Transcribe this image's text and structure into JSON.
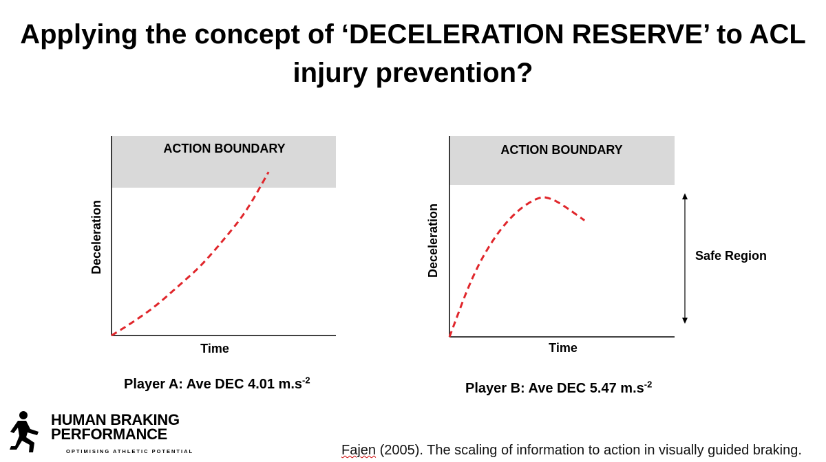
{
  "title": {
    "line1": "Applying the concept of ‘DECELERATION RESERVE’ to ACL",
    "line2": "injury prevention?"
  },
  "colors": {
    "curve": "#e0262b",
    "boundary_fill": "#d9d9d9",
    "axis": "#000000"
  },
  "chart_data": [
    {
      "type": "line",
      "style": "dashed",
      "title": "",
      "xlabel": "Time",
      "ylabel": "Deceleration",
      "boundary_label": "ACTION BOUNDARY",
      "x": [
        0,
        0.1,
        0.2,
        0.3,
        0.4,
        0.5,
        0.6,
        0.7
      ],
      "y": [
        0,
        0.07,
        0.15,
        0.25,
        0.35,
        0.48,
        0.62,
        0.82
      ],
      "xlim": [
        0,
        1
      ],
      "ylim": [
        0,
        1
      ],
      "boundary_ylim": [
        0.75,
        1
      ],
      "caption": {
        "text": "Player A: Ave DEC 4.01 m.s",
        "sup": "-2"
      }
    },
    {
      "type": "line",
      "style": "dashed",
      "title": "",
      "xlabel": "Time",
      "ylabel": "Deceleration",
      "boundary_label": "ACTION BOUNDARY",
      "x": [
        0,
        0.1,
        0.2,
        0.3,
        0.4,
        0.45,
        0.5,
        0.6
      ],
      "y": [
        0,
        0.3,
        0.5,
        0.63,
        0.7,
        0.69,
        0.66,
        0.58
      ],
      "xlim": [
        0,
        1
      ],
      "ylim": [
        0,
        1
      ],
      "boundary_ylim": [
        0.75,
        1
      ],
      "annotation": "Safe Region",
      "caption": {
        "text": "Player B: Ave DEC 5.47 m.s",
        "sup": "-2"
      }
    }
  ],
  "logo": {
    "line1": "HUMAN BRAKING",
    "line2": "PERFORMANCE",
    "tagline": "OPTIMISING ATHLETIC POTENTIAL",
    "icon": "runner-icon"
  },
  "citation": {
    "author": "Fajen",
    "rest": " (2005). The scaling of information to action in visually guided braking."
  }
}
